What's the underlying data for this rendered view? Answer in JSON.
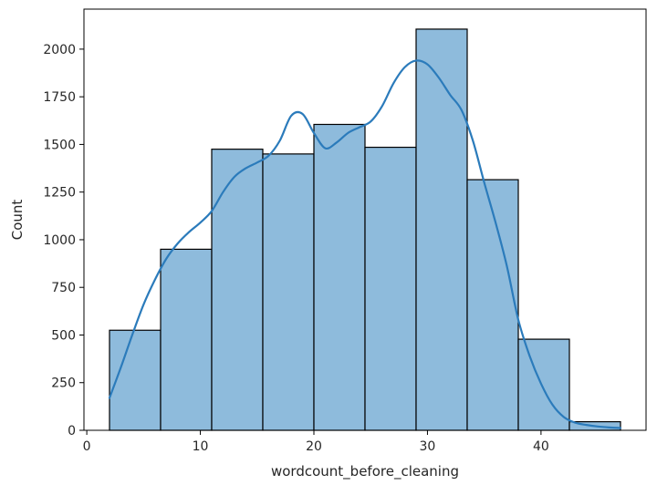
{
  "chart_data": {
    "type": "bar",
    "title": "",
    "xlabel": "wordcount_before_cleaning",
    "ylabel": "Count",
    "xlim": [
      -0.25,
      49.25
    ],
    "ylim": [
      0,
      2210
    ],
    "bin_edges": [
      2,
      6.5,
      11,
      15.5,
      20,
      24.5,
      29,
      33.5,
      38,
      42.5,
      47
    ],
    "values": [
      525,
      950,
      1475,
      1450,
      1605,
      1485,
      2105,
      1315,
      478,
      45
    ],
    "x_ticks": [
      0,
      10,
      20,
      30,
      40
    ],
    "y_ticks": [
      0,
      250,
      500,
      750,
      1000,
      1250,
      1500,
      1750,
      2000
    ],
    "kde": {
      "x": [
        2,
        3,
        4,
        5,
        6,
        7,
        8,
        9,
        10,
        11,
        12,
        13,
        14,
        15,
        16,
        17,
        18,
        19,
        20,
        21,
        22,
        23,
        24,
        25,
        26,
        27,
        28,
        29,
        30,
        31,
        32,
        33,
        34,
        35,
        36,
        37,
        38,
        39,
        40,
        41,
        42,
        43,
        44,
        45,
        46,
        47
      ],
      "y": [
        170,
        330,
        500,
        660,
        790,
        900,
        980,
        1040,
        1090,
        1150,
        1250,
        1330,
        1375,
        1405,
        1440,
        1520,
        1650,
        1660,
        1560,
        1480,
        1510,
        1560,
        1590,
        1620,
        1700,
        1820,
        1905,
        1940,
        1920,
        1850,
        1760,
        1680,
        1520,
        1300,
        1090,
        860,
        580,
        390,
        245,
        135,
        70,
        40,
        28,
        20,
        15,
        12
      ]
    },
    "colors": {
      "bar_fill": "#8ebbdc",
      "bar_edge": "#000000",
      "kde_line": "#2b7bbb"
    }
  }
}
